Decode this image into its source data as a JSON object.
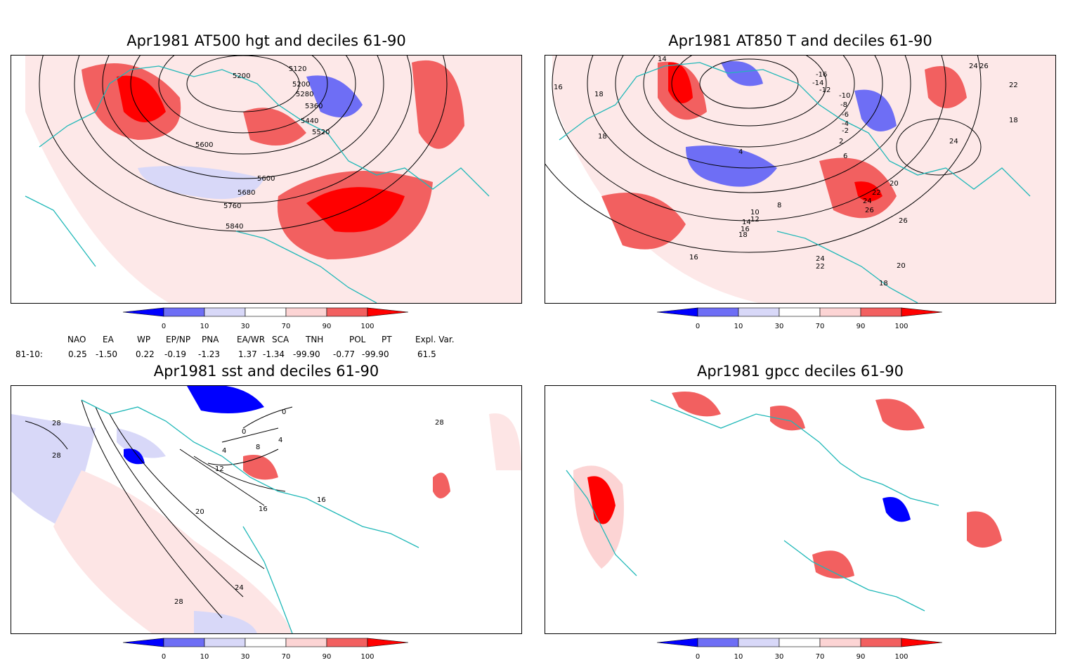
{
  "panels": [
    {
      "title": "Apr1981 AT500 hgt and deciles 61-90",
      "contour_labels": [
        "5200",
        "5120",
        "5200",
        "5280",
        "5360",
        "5440",
        "5520",
        "5600",
        "5600",
        "5680",
        "5760",
        "5840"
      ]
    },
    {
      "title": "Apr1981 AT850 T and deciles 61-90",
      "contour_labels": [
        "14",
        "16",
        "18",
        "18",
        "-16",
        "-14",
        "-12",
        "-10",
        "-8",
        "-6",
        "-4",
        "-2",
        "2",
        "4",
        "6",
        "8",
        "10",
        "12",
        "14",
        "16",
        "18",
        "20",
        "22",
        "24",
        "26",
        "24",
        "26",
        "22",
        "18",
        "24",
        "16",
        "24",
        "22",
        "20",
        "18",
        "26"
      ]
    },
    {
      "title": "Apr1981 sst and deciles 61-90",
      "contour_labels": [
        "28",
        "28",
        "0",
        "0",
        "4",
        "8",
        "4",
        "12",
        "16",
        "20",
        "16",
        "24",
        "28",
        "28"
      ]
    },
    {
      "title": "Apr1981 gpcc deciles 61-90",
      "contour_labels": []
    }
  ],
  "colorbar": {
    "ticks": [
      "0",
      "10",
      "30",
      "70",
      "90",
      "100"
    ],
    "colors": [
      "#0000ff",
      "#6e6ef5",
      "#d8d8f8",
      "#ffffff",
      "#fcd4d4",
      "#f26060",
      "#ff0000"
    ]
  },
  "indices": {
    "headers": [
      "NAO",
      "EA",
      "WP",
      "EP/NP",
      "PNA",
      "EA/WR",
      "SCA",
      "TNH",
      "POL",
      "PT",
      "Expl. Var."
    ],
    "row_label": "81-10:",
    "values": [
      "0.25",
      "-1.50",
      "0.22",
      "-0.19",
      "-1.23",
      "1.37",
      "-1.34",
      "-99.90",
      "-0.77",
      "-99.90",
      "61.5"
    ]
  }
}
